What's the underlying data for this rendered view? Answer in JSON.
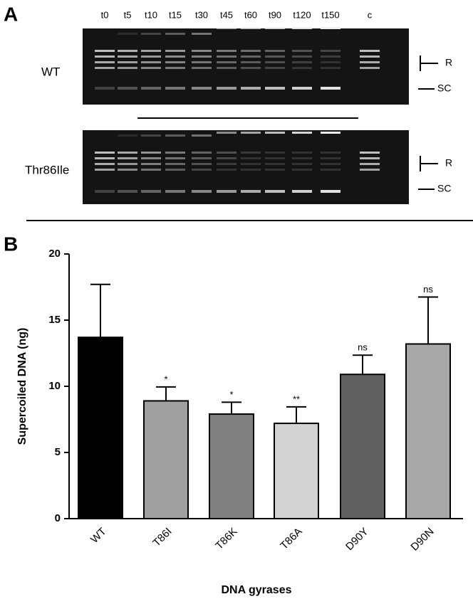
{
  "panel_a": {
    "label": "A",
    "lanes": [
      "t0",
      "t5",
      "t10",
      "t15",
      "t30",
      "t45",
      "t60",
      "t90",
      "t120",
      "t150",
      "c"
    ],
    "rows": [
      "WT",
      "Thr86Ile"
    ],
    "markers": [
      "R",
      "SC"
    ]
  },
  "chart_data": {
    "type": "bar",
    "panel_label": "B",
    "y_label": "Supercoiled DNA (ng)",
    "x_label": "DNA gyrases",
    "categories": [
      "WT",
      "T86I",
      "T86K",
      "T86A",
      "D90Y",
      "D90N"
    ],
    "values": [
      13.7,
      8.9,
      7.9,
      7.2,
      10.9,
      13.2
    ],
    "errors": [
      4.0,
      1.05,
      0.9,
      1.25,
      1.45,
      3.55
    ],
    "significance": [
      null,
      "*",
      "*",
      "**",
      "ns",
      "ns"
    ],
    "colors": [
      "#000000",
      "#a0a0a0",
      "#808080",
      "#d3d3d3",
      "#606060",
      "#a8a8a8"
    ],
    "ylim": [
      0,
      20
    ],
    "yticks": [
      0,
      5,
      10,
      15,
      20
    ]
  }
}
